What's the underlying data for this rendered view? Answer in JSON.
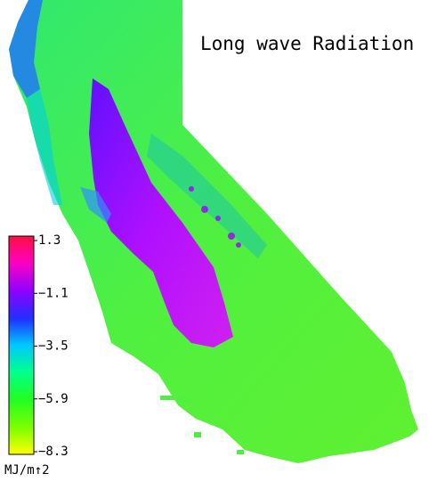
{
  "title": "Long wave Radiation",
  "colorbar": {
    "range": [
      -8.3,
      1.3
    ],
    "ticks": [
      {
        "value": 1.3,
        "label": "1.3"
      },
      {
        "value": -1.1,
        "label": "−1.1"
      },
      {
        "value": -3.5,
        "label": "−3.5"
      },
      {
        "value": -5.9,
        "label": "−5.9"
      },
      {
        "value": -8.3,
        "label": "−8.3"
      }
    ],
    "unit": "MJ/m↑2"
  }
}
